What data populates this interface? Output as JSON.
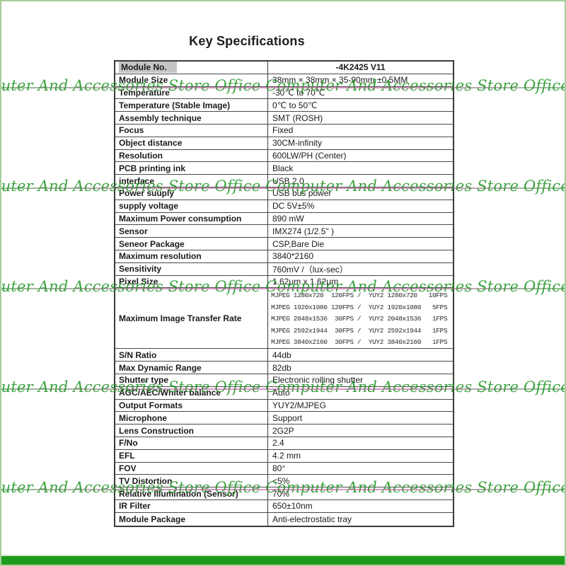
{
  "page": {
    "title": "Key Specifications",
    "watermark_text": "puter And Accessories Store Office Computer And Accessories Store Office Computer And Accessories Sto",
    "colors": {
      "frame_green": "#a6cf9c",
      "bottom_bar_green": "#1f9b1d",
      "watermark_green": "#209626",
      "strike_magenta": "#be55a0",
      "table_border": "#3a3a3a",
      "label_highlight_gray": "#c5c5c5"
    }
  },
  "table": {
    "rows": [
      {
        "label": "Module No.",
        "value": "-4K2425 V11",
        "highlight": true,
        "bold_center": true
      },
      {
        "label": "Module Size",
        "value": "38mm × 38mm × 35-90mm ±0.5MM"
      },
      {
        "label": "Temperature",
        "value": "-30℃ to 70℃"
      },
      {
        "label": "Temperature (Stable Image)",
        "value": "0℃ to 50℃"
      },
      {
        "label": "Assembly technique",
        "value": "SMT (ROSH)"
      },
      {
        "label": "Focus",
        "value": "Fixed"
      },
      {
        "label": "Object distance",
        "value": "30CM-infinity"
      },
      {
        "label": "Resolution",
        "value": "600LW/PH (Center)"
      },
      {
        "label": "PCB printing ink",
        "value": "Black"
      },
      {
        "label": "interface",
        "value": "USB 2.0"
      },
      {
        "label": "Power suuply",
        "value": "USB bus power"
      },
      {
        "label": "supply voltage",
        "value": "DC 5V±5%"
      },
      {
        "label": "Maximum Power consumption",
        "value": "890 mW"
      },
      {
        "label": "Sensor",
        "value": "IMX274 (1/2.5\" )"
      },
      {
        "label": "Seneor Package",
        "value": "CSP,Bare Die"
      },
      {
        "label": "Maximum resolution",
        "value": "3840*2160"
      },
      {
        "label": "Sensitivity",
        "value": "760mV /（lux-sec）"
      },
      {
        "label": "Pixel Size",
        "value": "1.62μm x 1.62μm"
      },
      {
        "label": "Maximum Image Transfer Rate",
        "lines": [
          "MJPEG 1280x720  120FPS /  YUY2 1280x720   10FPS",
          "MJPEG 1920x1080 120FPS /  YUY2 1920x1080   5FPS",
          "MJPEG 2048x1536  30FPS /  YUY2 2048x1536   1FPS",
          "MJPEG 2592x1944  30FPS /  YUY2 2592x1944   1FPS",
          "MJPEG 3840x2160  30FPS /  YUY2 3840x2160   1FPS"
        ]
      },
      {
        "label": "S/N Ratio",
        "value": "44db"
      },
      {
        "label": "Max Dynamic Range",
        "value": "82db"
      },
      {
        "label": "Shutter type",
        "value": "Electronic rolling shutter"
      },
      {
        "label": "AGC/AEC/Whiter balance",
        "value": "Auto"
      },
      {
        "label": "Output Formats",
        "value": "YUY2/MJPEG"
      },
      {
        "label": "Microphone",
        "value": "Support"
      },
      {
        "label": "Lens Construction",
        "value": "2G2P"
      },
      {
        "label": "F/No",
        "value": "2.4"
      },
      {
        "label": "EFL",
        "value": "4.2 mm"
      },
      {
        "label": "FOV",
        "value": "80°"
      },
      {
        "label": "TV Distortion",
        "value": "<5%"
      },
      {
        "label": "Relative Illumination (Sensor)",
        "value": "70%"
      },
      {
        "label": "IR Filter",
        "value": "650±10nm"
      },
      {
        "label": "Module Package",
        "value": "Anti-electrostatic tray"
      }
    ]
  }
}
